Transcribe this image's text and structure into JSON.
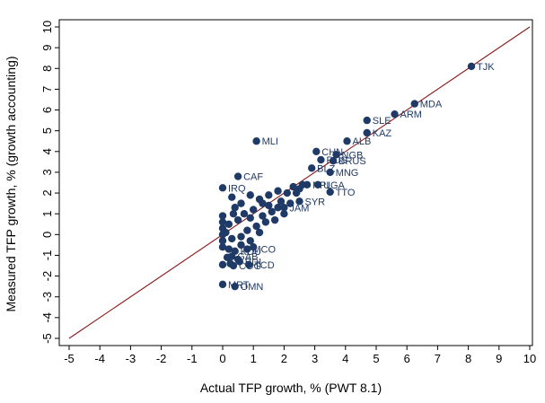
{
  "chart_data": {
    "type": "scatter",
    "xlabel": "Actual TFP growth, % (PWT 8.1)",
    "ylabel": "Measured TFP growth, % (growth accounting)",
    "xlim": [
      -5,
      10
    ],
    "ylim": [
      -5,
      10
    ],
    "x_ticks": [
      -5,
      -4,
      -3,
      -2,
      -1,
      0,
      1,
      2,
      3,
      4,
      5,
      6,
      7,
      8,
      9,
      10
    ],
    "y_ticks": [
      -5,
      -4,
      -3,
      -2,
      -1,
      0,
      1,
      2,
      3,
      4,
      5,
      6,
      7,
      8,
      9,
      10
    ],
    "grid": false,
    "legend": "none",
    "reference_line": {
      "type": "45-degree",
      "from": [
        -5,
        -5
      ],
      "to": [
        10,
        10
      ],
      "color": "#8b1a1a"
    },
    "marker_color": "#1f3a66",
    "label_color": "#1f3a66",
    "points": [
      {
        "x": 8.1,
        "y": 8.1,
        "label": "TJK"
      },
      {
        "x": 6.25,
        "y": 6.3,
        "label": "MDA"
      },
      {
        "x": 5.6,
        "y": 5.8,
        "label": "ARM"
      },
      {
        "x": 4.7,
        "y": 5.5,
        "label": "SLE"
      },
      {
        "x": 4.7,
        "y": 4.9,
        "label": "KAZ"
      },
      {
        "x": 4.05,
        "y": 4.5,
        "label": "ALB"
      },
      {
        "x": 1.1,
        "y": 4.5,
        "label": "MLI"
      },
      {
        "x": 3.05,
        "y": 4.0,
        "label": "CHN"
      },
      {
        "x": 3.7,
        "y": 3.85,
        "label": "NGB"
      },
      {
        "x": 3.2,
        "y": 3.6,
        "label": "RUS"
      },
      {
        "x": 3.6,
        "y": 3.55,
        "label": "BRUS"
      },
      {
        "x": 2.9,
        "y": 3.2,
        "label": "BLZ"
      },
      {
        "x": 3.5,
        "y": 3.0,
        "label": "MNG"
      },
      {
        "x": 0.5,
        "y": 2.8,
        "label": "CAF"
      },
      {
        "x": 3.1,
        "y": 2.4,
        "label": "UGA"
      },
      {
        "x": 2.75,
        "y": 2.4,
        "label": "NPL"
      },
      {
        "x": 3.5,
        "y": 2.05,
        "label": "TTO"
      },
      {
        "x": 0.0,
        "y": 2.25,
        "label": "IRQ"
      },
      {
        "x": 2.5,
        "y": 1.6,
        "label": "SYR"
      },
      {
        "x": 2.0,
        "y": 1.3,
        "label": "JAM"
      },
      {
        "x": 0.8,
        "y": -0.7,
        "label": "MCO"
      },
      {
        "x": 0.4,
        "y": -0.8,
        "label": "KDU"
      },
      {
        "x": 0.3,
        "y": -1.05,
        "label": "GAB"
      },
      {
        "x": 0.55,
        "y": -1.3,
        "label": "BDI"
      },
      {
        "x": 0.85,
        "y": -1.45,
        "label": "TCD"
      },
      {
        "x": 0.35,
        "y": -1.5,
        "label": "COG"
      },
      {
        "x": 0.0,
        "y": -2.4,
        "label": "MRT"
      },
      {
        "x": 0.4,
        "y": -2.5,
        "label": "OMN"
      },
      {
        "x": 0.3,
        "y": 1.8,
        "label": ""
      },
      {
        "x": 0.6,
        "y": 1.5,
        "label": ""
      },
      {
        "x": 0.9,
        "y": 1.9,
        "label": ""
      },
      {
        "x": 1.2,
        "y": 1.7,
        "label": ""
      },
      {
        "x": 1.5,
        "y": 1.4,
        "label": ""
      },
      {
        "x": 1.8,
        "y": 2.1,
        "label": ""
      },
      {
        "x": 2.1,
        "y": 2.0,
        "label": ""
      },
      {
        "x": 2.3,
        "y": 2.3,
        "label": ""
      },
      {
        "x": 2.5,
        "y": 2.2,
        "label": ""
      },
      {
        "x": 1.0,
        "y": 1.2,
        "label": ""
      },
      {
        "x": 0.7,
        "y": 1.0,
        "label": ""
      },
      {
        "x": 1.3,
        "y": 0.9,
        "label": ""
      },
      {
        "x": 1.6,
        "y": 1.1,
        "label": ""
      },
      {
        "x": 1.9,
        "y": 1.6,
        "label": ""
      },
      {
        "x": 2.2,
        "y": 1.5,
        "label": ""
      },
      {
        "x": 1.4,
        "y": 0.6,
        "label": ""
      },
      {
        "x": 1.1,
        "y": 0.4,
        "label": ""
      },
      {
        "x": 0.8,
        "y": 0.2,
        "label": ""
      },
      {
        "x": 0.5,
        "y": 0.7,
        "label": ""
      },
      {
        "x": 0.2,
        "y": 0.5,
        "label": ""
      },
      {
        "x": 0.0,
        "y": 0.9,
        "label": ""
      },
      {
        "x": 0.0,
        "y": 0.6,
        "label": ""
      },
      {
        "x": 0.0,
        "y": 0.3,
        "label": ""
      },
      {
        "x": 0.0,
        "y": 0.0,
        "label": ""
      },
      {
        "x": 0.0,
        "y": -0.3,
        "label": ""
      },
      {
        "x": 0.0,
        "y": -0.6,
        "label": ""
      },
      {
        "x": 0.1,
        "y": 0.1,
        "label": ""
      },
      {
        "x": 0.3,
        "y": -0.2,
        "label": ""
      },
      {
        "x": 0.6,
        "y": -0.1,
        "label": ""
      },
      {
        "x": 0.9,
        "y": -0.3,
        "label": ""
      },
      {
        "x": 1.2,
        "y": 0.1,
        "label": ""
      },
      {
        "x": 0.4,
        "y": 1.3,
        "label": ""
      },
      {
        "x": 0.9,
        "y": 0.8,
        "label": ""
      },
      {
        "x": 1.7,
        "y": 0.7,
        "label": ""
      },
      {
        "x": 2.0,
        "y": 1.0,
        "label": ""
      },
      {
        "x": 0.2,
        "y": -0.7,
        "label": ""
      },
      {
        "x": 0.6,
        "y": -0.5,
        "label": ""
      },
      {
        "x": 1.0,
        "y": -0.6,
        "label": ""
      },
      {
        "x": 0.15,
        "y": -1.1,
        "label": ""
      },
      {
        "x": 0.0,
        "y": -1.45,
        "label": ""
      },
      {
        "x": 0.25,
        "y": -1.4,
        "label": ""
      },
      {
        "x": 0.5,
        "y": -1.2,
        "label": ""
      },
      {
        "x": 1.5,
        "y": 1.9,
        "label": ""
      },
      {
        "x": 2.4,
        "y": 2.0,
        "label": ""
      },
      {
        "x": 2.6,
        "y": 2.4,
        "label": ""
      },
      {
        "x": 0.35,
        "y": 1.0,
        "label": ""
      },
      {
        "x": 1.3,
        "y": 1.5,
        "label": ""
      },
      {
        "x": 1.8,
        "y": 1.3,
        "label": ""
      }
    ]
  }
}
